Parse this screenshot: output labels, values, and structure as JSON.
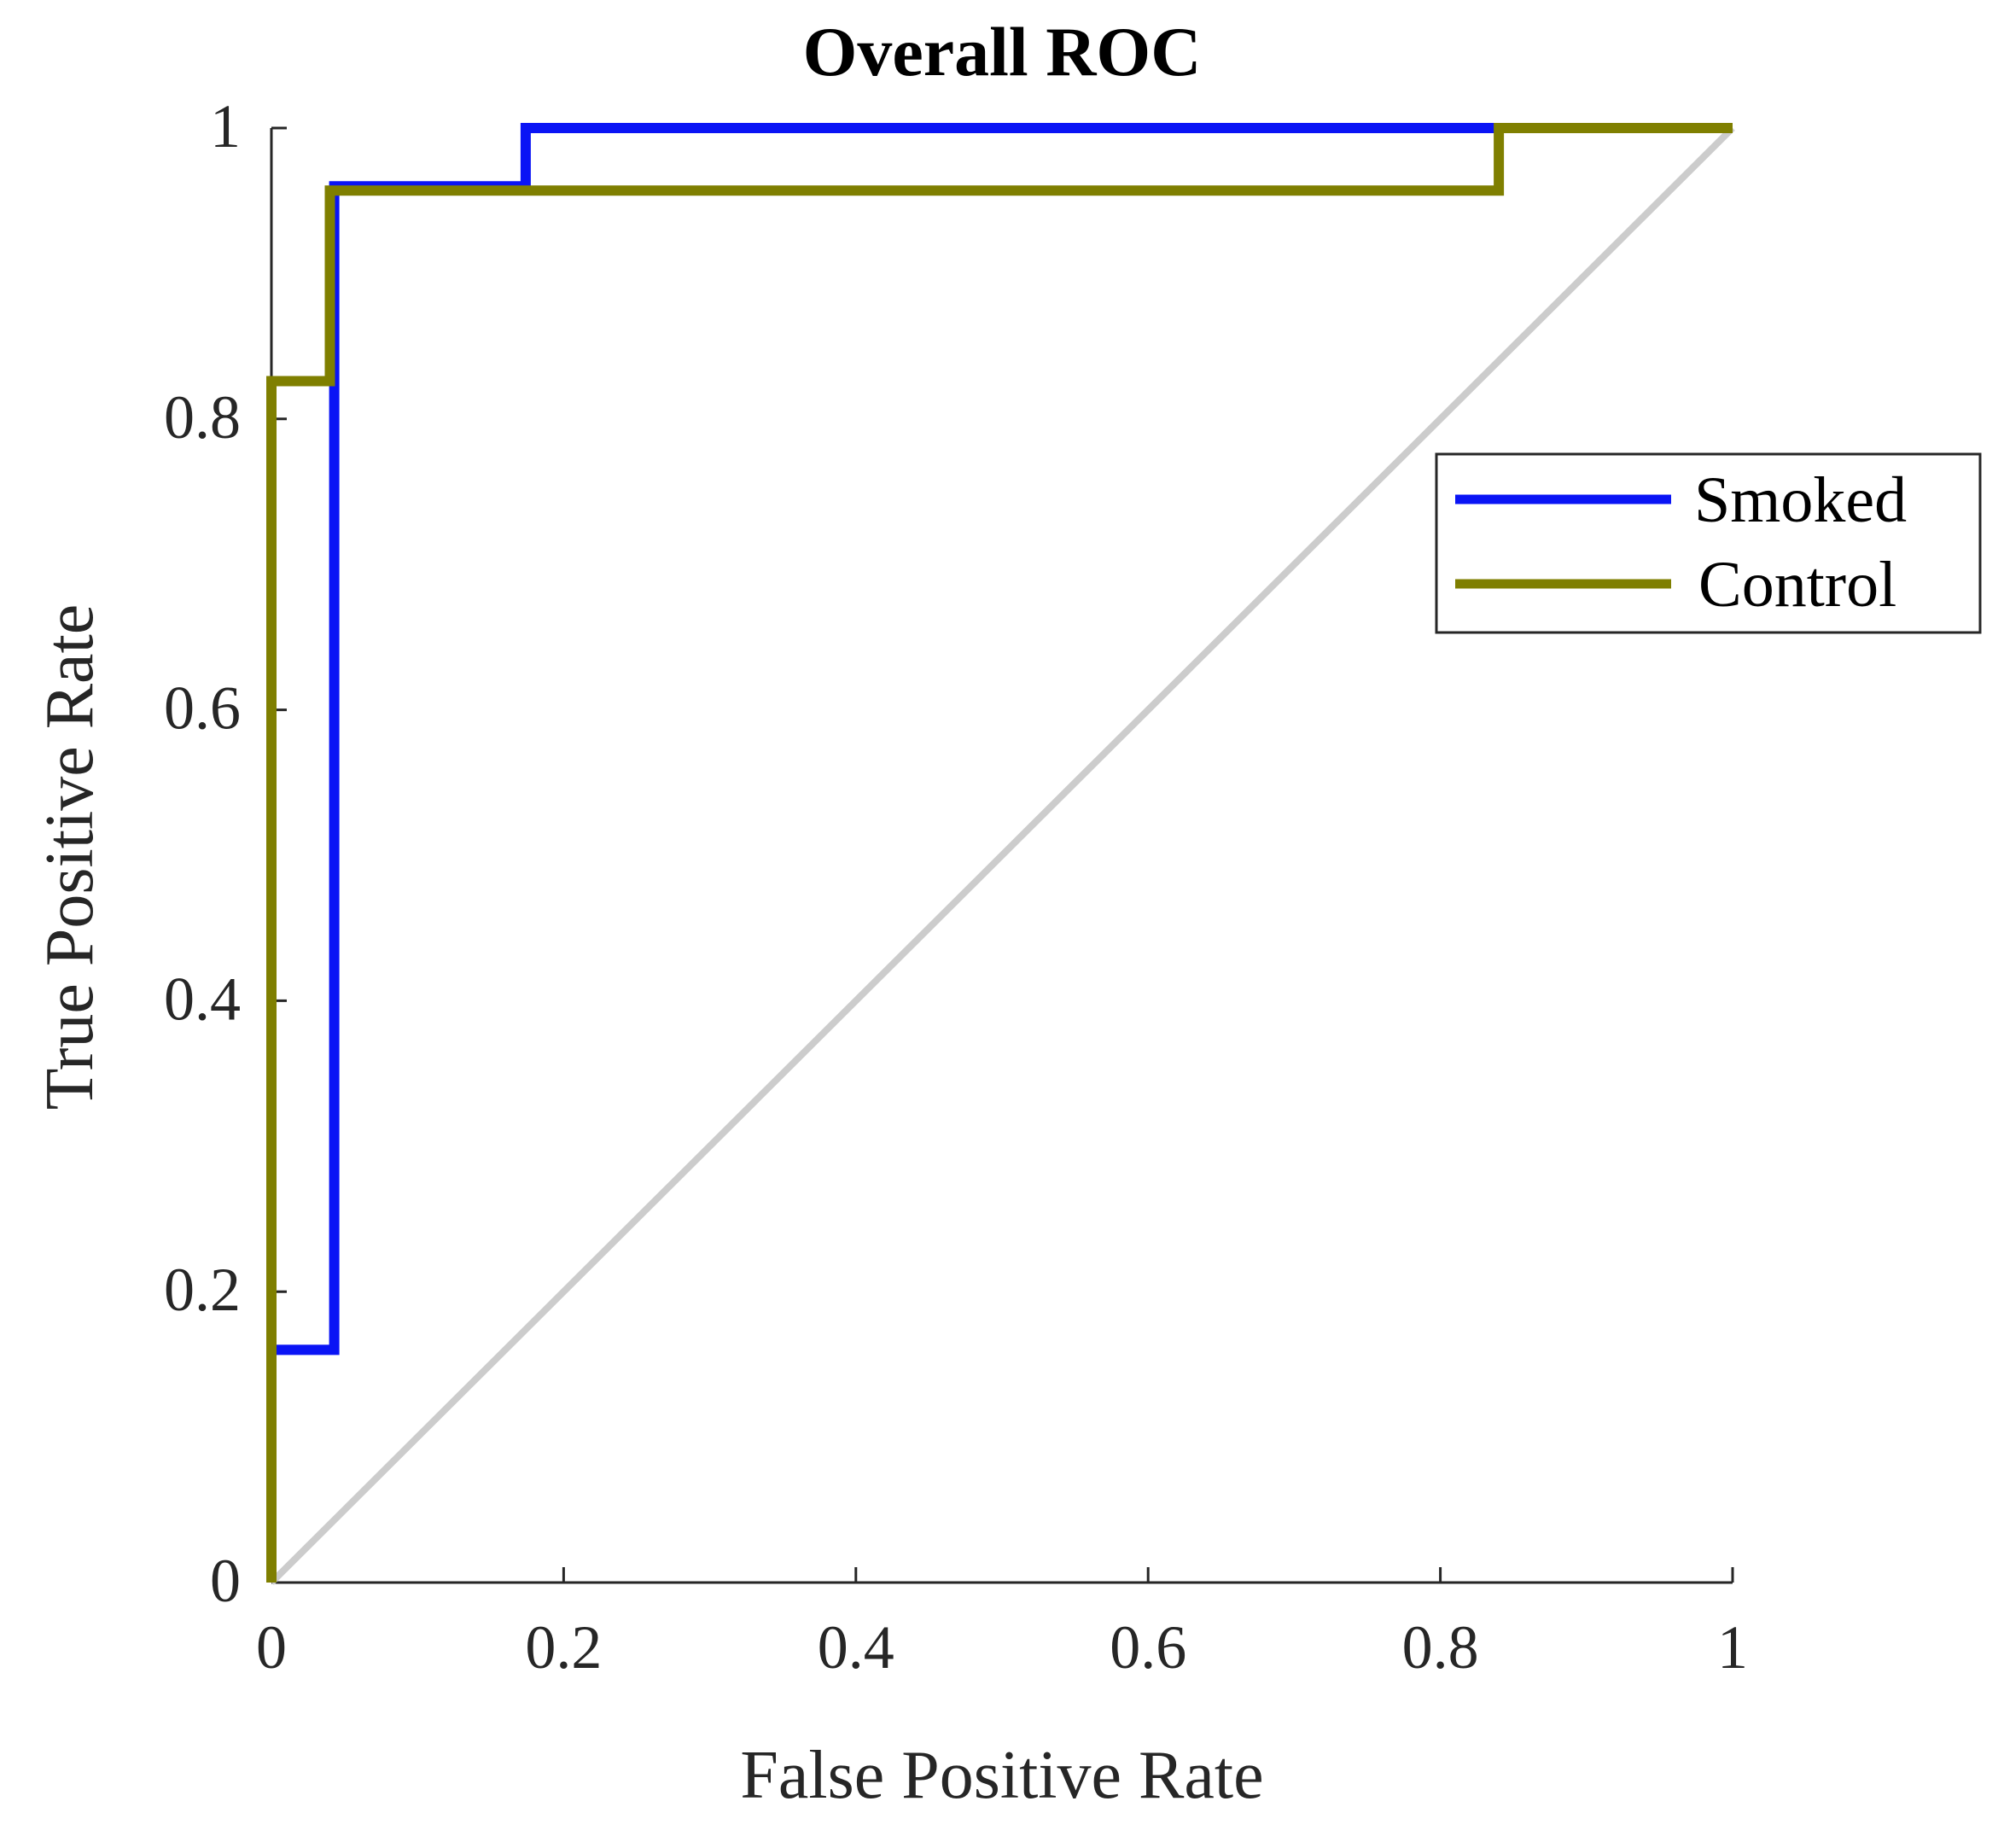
{
  "chart_data": {
    "type": "line",
    "title": "Overall ROC",
    "xlabel": "False Positive Rate",
    "ylabel": "True Positive Rate",
    "xlim": [
      0,
      1
    ],
    "ylim": [
      0,
      1
    ],
    "x_ticks": [
      0,
      0.2,
      0.4,
      0.6,
      0.8,
      1
    ],
    "y_ticks": [
      0,
      0.2,
      0.4,
      0.6,
      0.8,
      1
    ],
    "x_tick_labels": [
      "0",
      "0.2",
      "0.4",
      "0.6",
      "0.8",
      "1"
    ],
    "y_tick_labels": [
      "0",
      "0.2",
      "0.4",
      "0.6",
      "0.8",
      "1"
    ],
    "grid": false,
    "legend_position": "right",
    "reference_line": {
      "name": "chance",
      "color": "#cccccc",
      "points": [
        [
          0,
          0
        ],
        [
          1,
          1
        ]
      ]
    },
    "series": [
      {
        "name": "Smoked",
        "color": "#0a14f5",
        "points": [
          [
            0,
            0
          ],
          [
            0,
            0.16
          ],
          [
            0.043,
            0.16
          ],
          [
            0.043,
            0.96
          ],
          [
            0.174,
            0.96
          ],
          [
            0.174,
            1.0
          ],
          [
            1.0,
            1.0
          ]
        ]
      },
      {
        "name": "Control",
        "color": "#7f7f00",
        "points": [
          [
            0,
            0
          ],
          [
            0,
            0.826
          ],
          [
            0.04,
            0.826
          ],
          [
            0.04,
            0.957
          ],
          [
            0.84,
            0.957
          ],
          [
            0.84,
            1.0
          ],
          [
            1.0,
            1.0
          ]
        ]
      }
    ]
  }
}
